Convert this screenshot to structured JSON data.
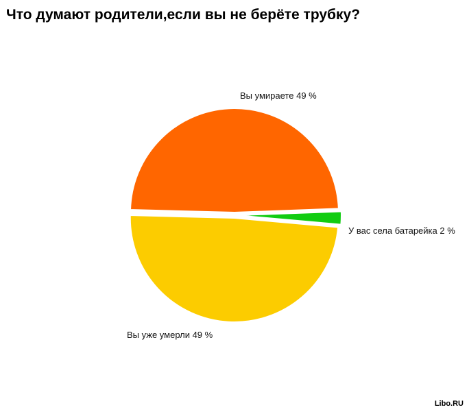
{
  "chart_data": {
    "type": "pie",
    "title": "Что думают родители,если вы не берёте трубку?",
    "slices": [
      {
        "label": "Вы умираете",
        "value": 49,
        "color": "#ff6600",
        "display": "Вы умираете 49 %"
      },
      {
        "label": "У вас села батарейка",
        "value": 2,
        "color": "#11cc11",
        "display": "У вас села батарейка 2 %"
      },
      {
        "label": "Вы уже умерли",
        "value": 49,
        "color": "#fccc00",
        "display": "Вы уже умерли 49 %"
      }
    ]
  },
  "watermark": "Libo.RU"
}
